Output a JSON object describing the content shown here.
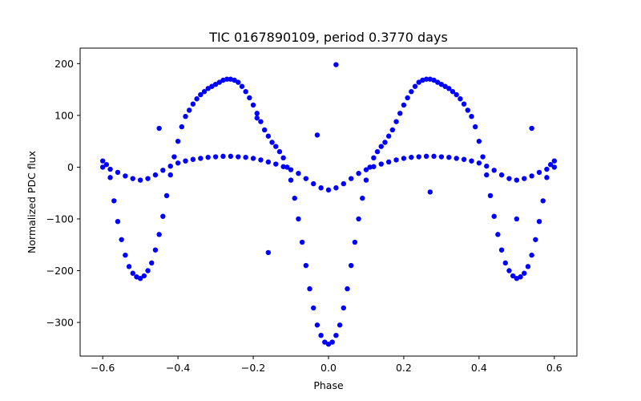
{
  "chart_data": {
    "type": "scatter",
    "title": "TIC 0167890109, period 0.3770 days",
    "xlabel": "Phase",
    "ylabel": "Normalized PDC flux",
    "xlim": [
      -0.66,
      0.66
    ],
    "ylim": [
      -365,
      230
    ],
    "x_ticks": [
      -0.6,
      -0.4,
      -0.2,
      0.0,
      0.2,
      0.4,
      0.6
    ],
    "x_tick_labels": [
      "−0.6",
      "−0.4",
      "−0.2",
      "0.0",
      "0.2",
      "0.4",
      "0.6"
    ],
    "y_ticks": [
      200,
      100,
      0,
      -100,
      -200,
      -300
    ],
    "y_tick_labels": [
      "200",
      "100",
      "0",
      "−100",
      "−200",
      "−300"
    ],
    "grid": false,
    "legend": "none",
    "marker_color": "#0000ff",
    "x_range": [
      -0.6,
      0.6
    ],
    "series": [
      {
        "description": "high-amplitude eclipsing light curve",
        "points": [
          [
            -0.6,
            12
          ],
          [
            -0.59,
            5
          ],
          [
            -0.58,
            -20
          ],
          [
            -0.57,
            -65
          ],
          [
            -0.56,
            -105
          ],
          [
            -0.55,
            -140
          ],
          [
            -0.54,
            -170
          ],
          [
            -0.53,
            -192
          ],
          [
            -0.52,
            -205
          ],
          [
            -0.51,
            -212
          ],
          [
            -0.5,
            -215
          ],
          [
            -0.49,
            -210
          ],
          [
            -0.48,
            -200
          ],
          [
            -0.47,
            -185
          ],
          [
            -0.46,
            -160
          ],
          [
            -0.45,
            -130
          ],
          [
            -0.44,
            -95
          ],
          [
            -0.43,
            -55
          ],
          [
            -0.42,
            -15
          ],
          [
            -0.41,
            20
          ],
          [
            -0.4,
            50
          ],
          [
            -0.39,
            78
          ],
          [
            -0.38,
            98
          ],
          [
            -0.37,
            110
          ],
          [
            -0.36,
            122
          ],
          [
            -0.35,
            132
          ],
          [
            -0.34,
            140
          ],
          [
            -0.33,
            146
          ],
          [
            -0.32,
            152
          ],
          [
            -0.31,
            156
          ],
          [
            -0.3,
            160
          ],
          [
            -0.29,
            164
          ],
          [
            -0.28,
            168
          ],
          [
            -0.27,
            170
          ],
          [
            -0.26,
            170
          ],
          [
            -0.25,
            168
          ],
          [
            -0.24,
            164
          ],
          [
            -0.23,
            156
          ],
          [
            -0.22,
            146
          ],
          [
            -0.21,
            134
          ],
          [
            -0.2,
            120
          ],
          [
            -0.19,
            104
          ],
          [
            -0.18,
            88
          ],
          [
            -0.17,
            72
          ],
          [
            -0.16,
            60
          ],
          [
            -0.15,
            48
          ],
          [
            -0.14,
            40
          ],
          [
            -0.13,
            30
          ],
          [
            -0.12,
            18
          ],
          [
            -0.11,
            0
          ],
          [
            -0.1,
            -25
          ],
          [
            -0.09,
            -60
          ],
          [
            -0.08,
            -100
          ],
          [
            -0.07,
            -145
          ],
          [
            -0.06,
            -190
          ],
          [
            -0.05,
            -235
          ],
          [
            -0.04,
            -272
          ],
          [
            -0.03,
            -305
          ],
          [
            -0.02,
            -325
          ],
          [
            -0.01,
            -338
          ],
          [
            0.0,
            -342
          ],
          [
            0.01,
            -338
          ],
          [
            0.02,
            -325
          ],
          [
            0.03,
            -305
          ],
          [
            0.04,
            -272
          ],
          [
            0.05,
            -235
          ],
          [
            0.06,
            -190
          ],
          [
            0.07,
            -145
          ],
          [
            0.08,
            -100
          ],
          [
            0.09,
            -60
          ],
          [
            0.1,
            -25
          ],
          [
            0.11,
            0
          ],
          [
            0.12,
            18
          ],
          [
            0.13,
            30
          ],
          [
            0.14,
            40
          ],
          [
            0.15,
            48
          ],
          [
            0.16,
            60
          ],
          [
            0.17,
            72
          ],
          [
            0.18,
            88
          ],
          [
            0.19,
            104
          ],
          [
            0.2,
            120
          ],
          [
            0.21,
            134
          ],
          [
            0.22,
            146
          ],
          [
            0.23,
            156
          ],
          [
            0.24,
            164
          ],
          [
            0.25,
            168
          ],
          [
            0.26,
            170
          ],
          [
            0.27,
            170
          ],
          [
            0.28,
            168
          ],
          [
            0.29,
            164
          ],
          [
            0.3,
            160
          ],
          [
            0.31,
            156
          ],
          [
            0.32,
            152
          ],
          [
            0.33,
            146
          ],
          [
            0.34,
            140
          ],
          [
            0.35,
            132
          ],
          [
            0.36,
            122
          ],
          [
            0.37,
            110
          ],
          [
            0.38,
            98
          ],
          [
            0.39,
            78
          ],
          [
            0.4,
            50
          ],
          [
            0.41,
            20
          ],
          [
            0.42,
            -15
          ],
          [
            0.43,
            -55
          ],
          [
            0.44,
            -95
          ],
          [
            0.45,
            -130
          ],
          [
            0.46,
            -160
          ],
          [
            0.47,
            -185
          ],
          [
            0.48,
            -200
          ],
          [
            0.49,
            -210
          ],
          [
            0.5,
            -215
          ],
          [
            0.51,
            -212
          ],
          [
            0.52,
            -205
          ],
          [
            0.53,
            -192
          ],
          [
            0.54,
            -170
          ],
          [
            0.55,
            -140
          ],
          [
            0.56,
            -105
          ],
          [
            0.57,
            -65
          ],
          [
            0.58,
            -20
          ],
          [
            0.59,
            5
          ],
          [
            0.6,
            12
          ]
        ]
      },
      {
        "description": "low-amplitude light curve (flat band)",
        "points": [
          [
            -0.6,
            0
          ],
          [
            -0.58,
            -4
          ],
          [
            -0.56,
            -10
          ],
          [
            -0.54,
            -17
          ],
          [
            -0.52,
            -22
          ],
          [
            -0.5,
            -25
          ],
          [
            -0.48,
            -22
          ],
          [
            -0.46,
            -15
          ],
          [
            -0.44,
            -6
          ],
          [
            -0.42,
            2
          ],
          [
            -0.4,
            8
          ],
          [
            -0.38,
            12
          ],
          [
            -0.36,
            15
          ],
          [
            -0.34,
            17
          ],
          [
            -0.32,
            19
          ],
          [
            -0.3,
            20
          ],
          [
            -0.28,
            21
          ],
          [
            -0.26,
            21
          ],
          [
            -0.24,
            20
          ],
          [
            -0.22,
            19
          ],
          [
            -0.2,
            17
          ],
          [
            -0.18,
            14
          ],
          [
            -0.16,
            10
          ],
          [
            -0.14,
            6
          ],
          [
            -0.12,
            1
          ],
          [
            -0.1,
            -5
          ],
          [
            -0.08,
            -12
          ],
          [
            -0.06,
            -22
          ],
          [
            -0.04,
            -32
          ],
          [
            -0.02,
            -40
          ],
          [
            0.0,
            -44
          ],
          [
            0.02,
            -40
          ],
          [
            0.04,
            -32
          ],
          [
            0.06,
            -22
          ],
          [
            0.08,
            -12
          ],
          [
            0.1,
            -5
          ],
          [
            0.12,
            1
          ],
          [
            0.14,
            6
          ],
          [
            0.16,
            10
          ],
          [
            0.18,
            14
          ],
          [
            0.2,
            17
          ],
          [
            0.22,
            19
          ],
          [
            0.24,
            20
          ],
          [
            0.26,
            21
          ],
          [
            0.28,
            21
          ],
          [
            0.3,
            20
          ],
          [
            0.32,
            19
          ],
          [
            0.34,
            17
          ],
          [
            0.36,
            15
          ],
          [
            0.38,
            12
          ],
          [
            0.4,
            8
          ],
          [
            0.42,
            2
          ],
          [
            0.44,
            -6
          ],
          [
            0.46,
            -15
          ],
          [
            0.48,
            -22
          ],
          [
            0.5,
            -25
          ],
          [
            0.52,
            -22
          ],
          [
            0.54,
            -17
          ],
          [
            0.56,
            -10
          ],
          [
            0.58,
            -4
          ],
          [
            0.6,
            0
          ]
        ]
      },
      {
        "description": "isolated outliers",
        "points": [
          [
            0.02,
            198
          ],
          [
            -0.03,
            62
          ],
          [
            -0.16,
            -165
          ],
          [
            -0.19,
            95
          ],
          [
            0.5,
            -100
          ],
          [
            0.27,
            -48
          ],
          [
            0.54,
            75
          ],
          [
            -0.45,
            75
          ]
        ]
      }
    ]
  }
}
